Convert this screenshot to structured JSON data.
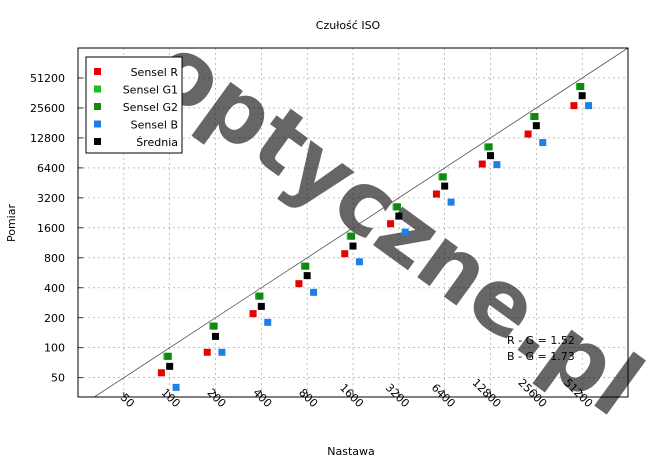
{
  "chart_data": {
    "type": "scatter",
    "title": "Czułość ISO",
    "xlabel": "Nastawa",
    "ylabel": "Pomiar",
    "scale": "log2",
    "grid": true,
    "legend_position": "top-left",
    "xlim": [
      25,
      102400
    ],
    "ylim": [
      32,
      102400
    ],
    "x_ticks": [
      50,
      100,
      200,
      400,
      800,
      1600,
      3200,
      6400,
      12800,
      25600,
      51200
    ],
    "y_ticks": [
      50,
      100,
      200,
      400,
      800,
      1600,
      3200,
      6400,
      12800,
      25600,
      51200
    ],
    "x": [
      100,
      200,
      400,
      800,
      1600,
      3200,
      6400,
      12800,
      25600,
      51200
    ],
    "series": [
      {
        "name": "Sensel R",
        "color": "#e60000",
        "offset": -0.18,
        "values": [
          56,
          90,
          220,
          440,
          880,
          1760,
          3500,
          7000,
          14000,
          27000
        ]
      },
      {
        "name": "Sensel G1",
        "color": "#22bb22",
        "offset": -0.06,
        "values": [
          82,
          165,
          330,
          660,
          1320,
          2600,
          5200,
          10400,
          21000,
          42000
        ]
      },
      {
        "name": "Sensel G2",
        "color": "#118811",
        "offset": -0.03,
        "values": [
          82,
          165,
          330,
          660,
          1320,
          2600,
          5200,
          10400,
          21000,
          42000
        ]
      },
      {
        "name": "Sensel B",
        "color": "#1e7fe6",
        "offset": 0.14,
        "values": [
          40,
          90,
          180,
          360,
          730,
          1450,
          2900,
          6900,
          11500,
          27000
        ]
      },
      {
        "name": "Średnia",
        "color": "#000000",
        "offset": 0.0,
        "values": [
          65,
          130,
          260,
          530,
          1050,
          2100,
          4200,
          8500,
          17000,
          34000
        ]
      }
    ],
    "reference_line": "y = x",
    "annotations": [
      "R - G = 1.52",
      "B - G = 1.73"
    ],
    "watermark": "optyczne.pl"
  }
}
